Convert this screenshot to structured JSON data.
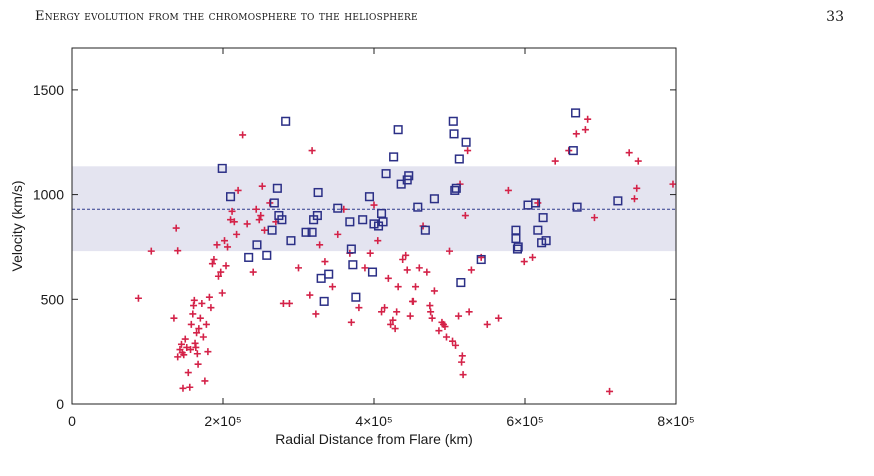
{
  "header": {
    "running_title": "Energy evolution from the chromosphere to the heliosphere",
    "page_number": "33"
  },
  "chart_data": {
    "type": "scatter",
    "title": "",
    "xlabel": "Radial Distance from Flare (km)",
    "ylabel": "Velocity (km/s)",
    "xlim": [
      0,
      800000
    ],
    "ylim": [
      0,
      1700
    ],
    "x_ticks": [
      0,
      200000,
      400000,
      600000,
      800000
    ],
    "x_tick_labels": [
      "0",
      "2×10⁵",
      "4×10⁵",
      "6×10⁵",
      "8×10⁵"
    ],
    "y_ticks": [
      0,
      500,
      1000,
      1500
    ],
    "y_tick_labels": [
      "0",
      "500",
      "1000",
      "1500"
    ],
    "grid": false,
    "band": {
      "y_low": 730,
      "y_high": 1135,
      "color": "#e4e4f0"
    },
    "mean_line": {
      "y": 930,
      "color": "#2e3a8c",
      "style": "dashed"
    },
    "colors": {
      "series_plus": "#d42248",
      "series_square": "#2b2f86"
    },
    "series": [
      {
        "marker": "plus",
        "points": [
          [
            88000,
            505
          ],
          [
            105000,
            730
          ],
          [
            135000,
            410
          ],
          [
            138000,
            840
          ],
          [
            140000,
            732
          ],
          [
            140000,
            225
          ],
          [
            143000,
            260
          ],
          [
            145000,
            285
          ],
          [
            146000,
            245
          ],
          [
            147000,
            75
          ],
          [
            148000,
            235
          ],
          [
            150000,
            310
          ],
          [
            152000,
            270
          ],
          [
            154000,
            150
          ],
          [
            156000,
            80
          ],
          [
            157000,
            260
          ],
          [
            158000,
            380
          ],
          [
            160000,
            430
          ],
          [
            161000,
            470
          ],
          [
            162000,
            495
          ],
          [
            163000,
            290
          ],
          [
            164000,
            270
          ],
          [
            165000,
            340
          ],
          [
            166000,
            240
          ],
          [
            167000,
            190
          ],
          [
            168000,
            360
          ],
          [
            170000,
            410
          ],
          [
            172000,
            480
          ],
          [
            174000,
            320
          ],
          [
            176000,
            110
          ],
          [
            178000,
            380
          ],
          [
            180000,
            250
          ],
          [
            182000,
            510
          ],
          [
            184000,
            460
          ],
          [
            186000,
            670
          ],
          [
            188000,
            690
          ],
          [
            192000,
            760
          ],
          [
            194000,
            610
          ],
          [
            197000,
            630
          ],
          [
            199000,
            530
          ],
          [
            202000,
            780
          ],
          [
            204000,
            660
          ],
          [
            206000,
            750
          ],
          [
            210000,
            880
          ],
          [
            212000,
            920
          ],
          [
            215000,
            870
          ],
          [
            218000,
            810
          ],
          [
            220000,
            1020
          ],
          [
            226000,
            1285
          ],
          [
            232000,
            860
          ],
          [
            240000,
            630
          ],
          [
            244000,
            930
          ],
          [
            248000,
            880
          ],
          [
            250000,
            900
          ],
          [
            252000,
            1040
          ],
          [
            255000,
            830
          ],
          [
            262000,
            960
          ],
          [
            270000,
            870
          ],
          [
            280000,
            480
          ],
          [
            288000,
            480
          ],
          [
            300000,
            650
          ],
          [
            315000,
            520
          ],
          [
            318000,
            1210
          ],
          [
            323000,
            430
          ],
          [
            328000,
            760
          ],
          [
            335000,
            680
          ],
          [
            345000,
            560
          ],
          [
            352000,
            810
          ],
          [
            360000,
            930
          ],
          [
            368000,
            720
          ],
          [
            370000,
            390
          ],
          [
            380000,
            460
          ],
          [
            388000,
            650
          ],
          [
            395000,
            720
          ],
          [
            400000,
            950
          ],
          [
            405000,
            780
          ],
          [
            410000,
            440
          ],
          [
            414000,
            460
          ],
          [
            419000,
            600
          ],
          [
            422000,
            380
          ],
          [
            425000,
            400
          ],
          [
            428000,
            360
          ],
          [
            430000,
            440
          ],
          [
            432000,
            560
          ],
          [
            438000,
            690
          ],
          [
            442000,
            710
          ],
          [
            444000,
            640
          ],
          [
            448000,
            420
          ],
          [
            451000,
            490
          ],
          [
            452000,
            490
          ],
          [
            455000,
            560
          ],
          [
            460000,
            650
          ],
          [
            465000,
            850
          ],
          [
            470000,
            630
          ],
          [
            474000,
            470
          ],
          [
            475000,
            440
          ],
          [
            477000,
            410
          ],
          [
            480000,
            540
          ],
          [
            486000,
            350
          ],
          [
            490000,
            390
          ],
          [
            492000,
            380
          ],
          [
            494000,
            370
          ],
          [
            496000,
            320
          ],
          [
            500000,
            730
          ],
          [
            504000,
            300
          ],
          [
            508000,
            280
          ],
          [
            512000,
            420
          ],
          [
            514000,
            1050
          ],
          [
            516000,
            200
          ],
          [
            517000,
            230
          ],
          [
            518000,
            140
          ],
          [
            521000,
            900
          ],
          [
            524000,
            1210
          ],
          [
            526000,
            440
          ],
          [
            529000,
            640
          ],
          [
            542000,
            700
          ],
          [
            550000,
            380
          ],
          [
            565000,
            410
          ],
          [
            578000,
            1020
          ],
          [
            599000,
            680
          ],
          [
            610000,
            700
          ],
          [
            617000,
            960
          ],
          [
            640000,
            1160
          ],
          [
            658000,
            1210
          ],
          [
            668000,
            1290
          ],
          [
            680000,
            1310
          ],
          [
            683000,
            1360
          ],
          [
            692000,
            890
          ],
          [
            712000,
            60
          ],
          [
            738000,
            1200
          ],
          [
            745000,
            980
          ],
          [
            748000,
            1030
          ],
          [
            750000,
            1160
          ],
          [
            796000,
            1050
          ]
        ]
      },
      {
        "marker": "square",
        "points": [
          [
            199000,
            1125
          ],
          [
            210000,
            990
          ],
          [
            234000,
            700
          ],
          [
            245000,
            760
          ],
          [
            258000,
            710
          ],
          [
            265000,
            830
          ],
          [
            268000,
            960
          ],
          [
            272000,
            1030
          ],
          [
            274000,
            900
          ],
          [
            278000,
            880
          ],
          [
            283000,
            1350
          ],
          [
            290000,
            780
          ],
          [
            310000,
            820
          ],
          [
            318000,
            820
          ],
          [
            320000,
            880
          ],
          [
            325000,
            900
          ],
          [
            326000,
            1010
          ],
          [
            330000,
            600
          ],
          [
            334000,
            490
          ],
          [
            340000,
            620
          ],
          [
            352000,
            935
          ],
          [
            368000,
            870
          ],
          [
            370000,
            740
          ],
          [
            372000,
            665
          ],
          [
            376000,
            510
          ],
          [
            385000,
            880
          ],
          [
            394000,
            990
          ],
          [
            398000,
            630
          ],
          [
            400000,
            860
          ],
          [
            406000,
            850
          ],
          [
            410000,
            910
          ],
          [
            412000,
            870
          ],
          [
            416000,
            1100
          ],
          [
            426000,
            1180
          ],
          [
            432000,
            1310
          ],
          [
            436000,
            1050
          ],
          [
            444000,
            1070
          ],
          [
            446000,
            1090
          ],
          [
            458000,
            940
          ],
          [
            468000,
            830
          ],
          [
            480000,
            980
          ],
          [
            505000,
            1350
          ],
          [
            506000,
            1290
          ],
          [
            507000,
            1020
          ],
          [
            509000,
            1030
          ],
          [
            513000,
            1170
          ],
          [
            515000,
            580
          ],
          [
            522000,
            1250
          ],
          [
            542000,
            690
          ],
          [
            588000,
            830
          ],
          [
            588000,
            790
          ],
          [
            590000,
            740
          ],
          [
            591000,
            750
          ],
          [
            604000,
            950
          ],
          [
            614000,
            960
          ],
          [
            617000,
            830
          ],
          [
            622000,
            770
          ],
          [
            624000,
            890
          ],
          [
            628000,
            780
          ],
          [
            664000,
            1210
          ],
          [
            667000,
            1390
          ],
          [
            669000,
            940
          ],
          [
            723000,
            970
          ]
        ]
      }
    ]
  }
}
